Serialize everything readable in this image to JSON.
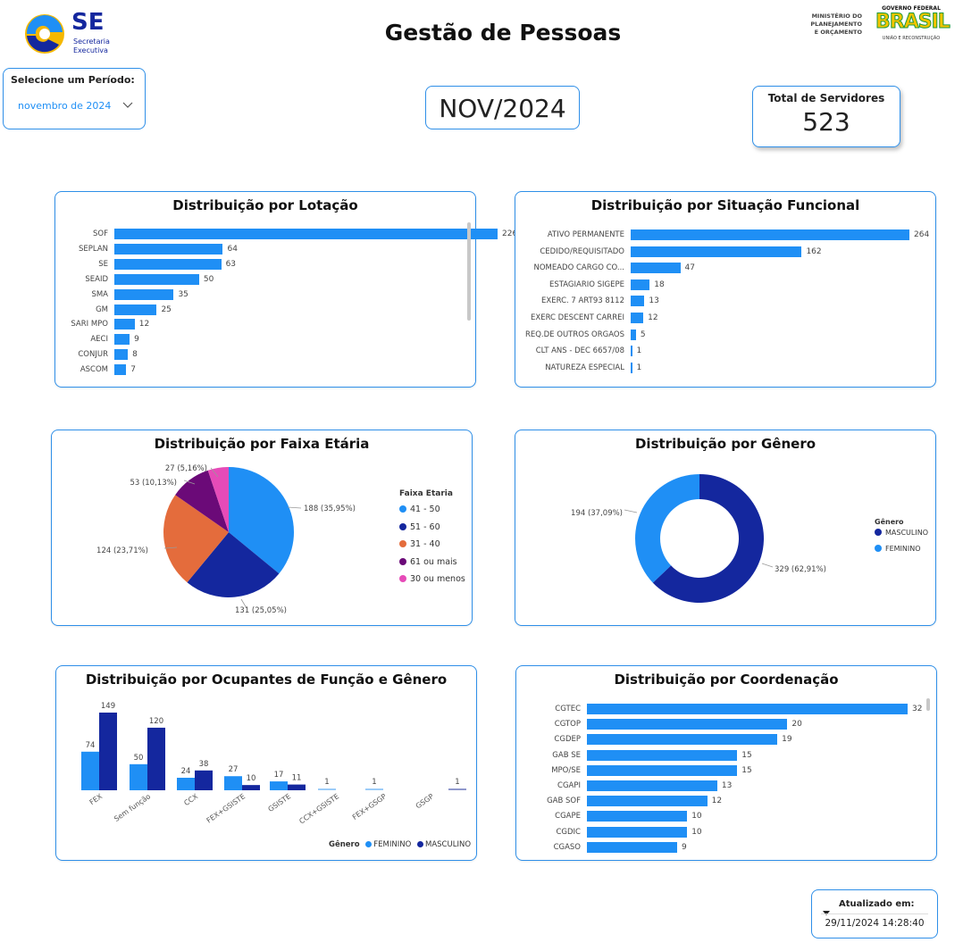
{
  "header": {
    "logo_text": "SE",
    "logo_sub1": "Secretaria",
    "logo_sub2": "Executiva",
    "title": "Gestão de Pessoas",
    "ministry_line1": "MINISTÉRIO DO",
    "ministry_line2": "PLANEJAMENTO",
    "ministry_line3": "E ORÇAMENTO",
    "gov_line1": "GOVERNO FEDERAL",
    "gov_brand": "BRASIL",
    "gov_line2": "UNIÃO E RECONSTRUÇÃO"
  },
  "period": {
    "label": "Selecione um Período:",
    "value": "novembro de 2024"
  },
  "period_display": "NOV/2024",
  "servers": {
    "label": "Total de Servidores",
    "value": "523"
  },
  "updated": {
    "label": "Atualizado em:",
    "value": "29/11/2024 14:28:40"
  },
  "colors": {
    "accent": "#1f8ff5",
    "navy": "#14279e",
    "orange": "#e46c3c",
    "purple": "#6b0a78",
    "pink": "#e64bb8"
  },
  "chart_data": [
    {
      "id": "lotacao",
      "type": "bar",
      "orientation": "horizontal",
      "title": "Distribuição por Lotação",
      "categories": [
        "SOF",
        "SEPLAN",
        "SE",
        "SEAID",
        "SMA",
        "GM",
        "SARI MPO",
        "AECI",
        "CONJUR",
        "ASCOM"
      ],
      "values": [
        226,
        64,
        63,
        50,
        35,
        25,
        12,
        9,
        8,
        7
      ],
      "xlim": [
        0,
        226
      ]
    },
    {
      "id": "situacao",
      "type": "bar",
      "orientation": "horizontal",
      "title": "Distribuição por Situação Funcional",
      "categories": [
        "ATIVO PERMANENTE",
        "CEDIDO/REQUISITADO",
        "NOMEADO CARGO CO...",
        "ESTAGIARIO SIGEPE",
        "EXERC. 7 ART93 8112",
        "EXERC DESCENT CARREI",
        "REQ.DE OUTROS ORGAOS",
        "CLT ANS - DEC 6657/08",
        "NATUREZA ESPECIAL"
      ],
      "values": [
        264,
        162,
        47,
        18,
        13,
        12,
        5,
        1,
        1
      ],
      "xlim": [
        0,
        264
      ]
    },
    {
      "id": "faixa",
      "type": "pie",
      "title": "Distribuição por Faixa Etária",
      "legend_title": "Faixa Etaria",
      "categories": [
        "41 - 50",
        "51 - 60",
        "31 - 40",
        "61 ou mais",
        "30 ou menos"
      ],
      "values": [
        188,
        131,
        124,
        53,
        27
      ],
      "labels": [
        "188 (35,95%)",
        "131 (25,05%)",
        "124 (23,71%)",
        "53 (10,13%)",
        "27 (5,16%)"
      ]
    },
    {
      "id": "genero",
      "type": "pie",
      "donut": true,
      "title": "Distribuição por Gênero",
      "legend_title": "Gênero",
      "categories": [
        "MASCULINO",
        "FEMININO"
      ],
      "values": [
        329,
        194
      ],
      "labels": [
        "329 (62,91%)",
        "194 (37,09%)"
      ]
    },
    {
      "id": "funcao",
      "type": "bar",
      "orientation": "vertical",
      "title": "Distribuição por Ocupantes de Função e Gênero",
      "legend_title": "Gênero",
      "categories": [
        "FEX",
        "Sem função",
        "CCX",
        "FEX+GSISTE",
        "GSISTE",
        "CCX+GSISTE",
        "FEX+GSGP",
        "GSGP"
      ],
      "series": [
        {
          "name": "FEMININO",
          "values": [
            74,
            50,
            24,
            27,
            17,
            1,
            1,
            null
          ]
        },
        {
          "name": "MASCULINO",
          "values": [
            149,
            120,
            38,
            10,
            11,
            null,
            null,
            1
          ]
        }
      ],
      "ylim": [
        0,
        149
      ]
    },
    {
      "id": "coordenacao",
      "type": "bar",
      "orientation": "horizontal",
      "title": "Distribuição por Coordenação",
      "categories": [
        "CGTEC",
        "CGTOP",
        "CGDEP",
        "GAB SE",
        "MPO/SE",
        "CGAPI",
        "GAB SOF",
        "CGAPE",
        "CGDIC",
        "CGASO"
      ],
      "values": [
        32,
        20,
        19,
        15,
        15,
        13,
        12,
        10,
        10,
        9
      ],
      "xlim": [
        0,
        32
      ]
    }
  ]
}
